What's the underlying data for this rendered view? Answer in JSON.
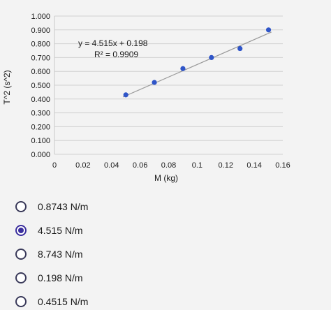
{
  "chart_data": {
    "type": "scatter",
    "xlabel": "M (kg)",
    "ylabel": "T^2 (s^2)",
    "xlim": [
      0,
      0.16
    ],
    "ylim": [
      0,
      1.0
    ],
    "x_ticks": [
      "0",
      "0.02",
      "0.04",
      "0.06",
      "0.08",
      "0.1",
      "0.12",
      "0.14",
      "0.16"
    ],
    "y_ticks": [
      "0.000",
      "0.100",
      "0.200",
      "0.300",
      "0.400",
      "0.500",
      "0.600",
      "0.700",
      "0.800",
      "0.900",
      "1.000"
    ],
    "points": [
      {
        "x": 0.05,
        "y": 0.43
      },
      {
        "x": 0.07,
        "y": 0.52
      },
      {
        "x": 0.09,
        "y": 0.62
      },
      {
        "x": 0.11,
        "y": 0.7
      },
      {
        "x": 0.13,
        "y": 0.765
      },
      {
        "x": 0.15,
        "y": 0.9
      }
    ],
    "trendline": {
      "slope": 4.515,
      "intercept": 0.198,
      "x_range": [
        0.05,
        0.15
      ]
    },
    "equation": "y = 4.515x + 0.198",
    "r_squared": "R² = 0.9909",
    "grid": true,
    "colors": {
      "point": "#2f55c8",
      "trendline": "#9a9a9a",
      "grid": "#d2d2d2"
    }
  },
  "options": [
    {
      "label": "0.8743 N/m",
      "selected": false
    },
    {
      "label": "4.515 N/m",
      "selected": true
    },
    {
      "label": "8.743 N/m",
      "selected": false
    },
    {
      "label": "0.198 N/m",
      "selected": false
    },
    {
      "label": "0.4515 N/m",
      "selected": false
    }
  ]
}
